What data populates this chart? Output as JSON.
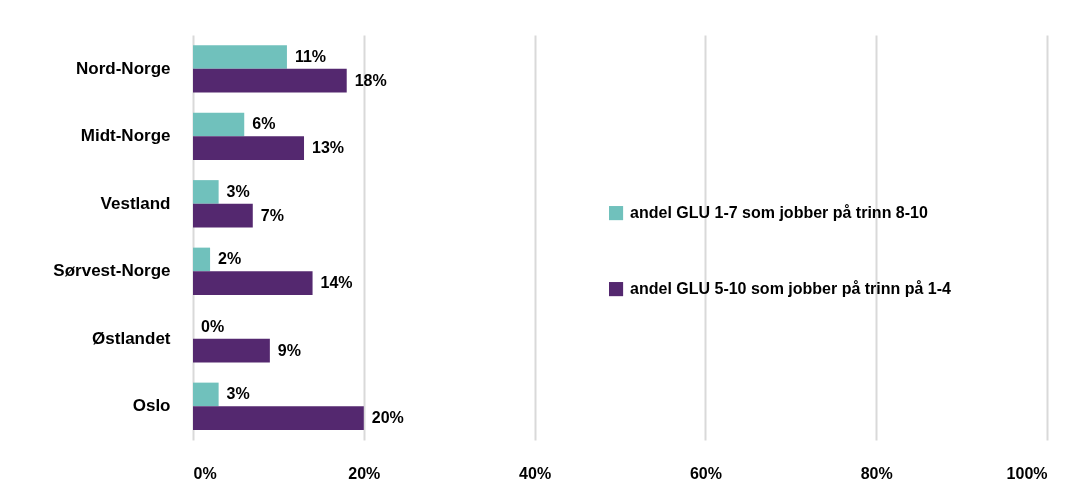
{
  "chart_data": {
    "type": "bar",
    "orientation": "horizontal",
    "categories": [
      "Nord-Norge",
      "Midt-Norge",
      "Vestland",
      "Sørvest-Norge",
      "Østlandet",
      "Oslo"
    ],
    "series": [
      {
        "name": "andel GLU 1-7 som jobber på trinn 8-10",
        "color": "#70c1bc",
        "values": [
          11,
          6,
          3,
          2,
          0,
          3
        ],
        "value_labels": [
          "11%",
          "6%",
          "3%",
          "2%",
          "0%",
          "3%"
        ]
      },
      {
        "name": "andel GLU 5-10 som jobber på trinn på 1-4",
        "color": "#54286f",
        "values": [
          18,
          13,
          7,
          14,
          9,
          20
        ],
        "value_labels": [
          "18%",
          "13%",
          "7%",
          "14%",
          "9%",
          "20%"
        ]
      }
    ],
    "xlim": [
      0,
      100
    ],
    "xticks": [
      {
        "value": 0,
        "label": "0%"
      },
      {
        "value": 20,
        "label": "20%"
      },
      {
        "value": 40,
        "label": "40%"
      },
      {
        "value": 60,
        "label": "60%"
      },
      {
        "value": 80,
        "label": "80%"
      },
      {
        "value": 100,
        "label": "100%"
      }
    ],
    "grid": "x",
    "legend": "right"
  }
}
